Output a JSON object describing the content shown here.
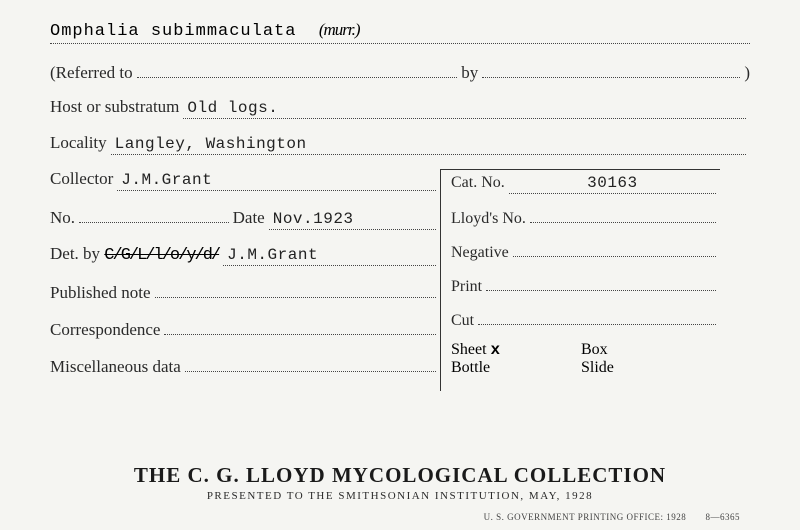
{
  "species": "Omphalia subimmaculata",
  "species_note": "(murr.)",
  "referred_label": "(Referred to",
  "referred_value": "",
  "by_label": "by",
  "by_value": "",
  "referred_close": ")",
  "host_label": "Host or substratum",
  "host_value": "Old logs.",
  "locality_label": "Locality",
  "locality_value": "Langley, Washington",
  "collector_label": "Collector",
  "collector_value": "J.M.Grant",
  "no_label": "No.",
  "no_value": "",
  "date_label": "Date",
  "date_value": "Nov.1923",
  "det_label": "Det. by",
  "det_struck": "C/G/L/l/o/y/d/",
  "det_value": "J.M.Grant",
  "pub_label": "Published note",
  "pub_value": "",
  "corr_label": "Correspondence",
  "corr_value": "",
  "misc_label": "Miscellaneous data",
  "misc_value": "",
  "cat_label": "Cat. No.",
  "cat_value": "30163",
  "lloyds_label": "Lloyd's No.",
  "lloyds_value": "",
  "neg_label": "Negative",
  "neg_value": "",
  "print_label": "Print",
  "print_value": "",
  "cut_label": "Cut",
  "cut_value": "",
  "sheet_label": "Sheet",
  "sheet_mark": "x",
  "box_label": "Box",
  "bottle_label": "Bottle",
  "slide_label": "Slide",
  "footer_title": "THE C. G. LLOYD MYCOLOGICAL COLLECTION",
  "footer_sub": "PRESENTED TO THE SMITHSONIAN INSTITUTION, MAY, 1928",
  "tiny_left": "U. S. GOVERNMENT PRINTING OFFICE: 1928",
  "tiny_right": "8—6365"
}
